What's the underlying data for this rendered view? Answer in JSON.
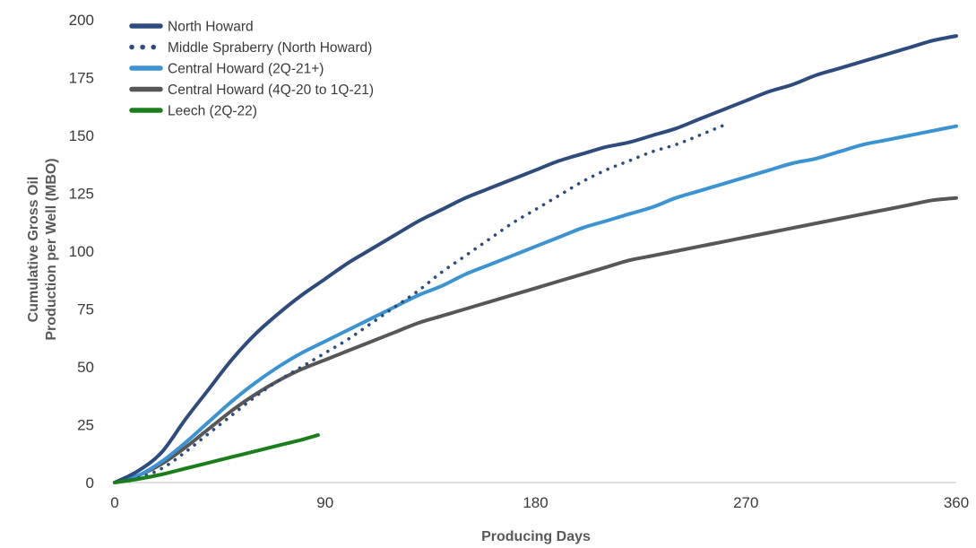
{
  "chart_data": {
    "type": "line",
    "title": "",
    "xlabel": "Producing Days",
    "ylabel_lines": [
      "Cumulative Gross Oil",
      "Production per Well (MBO)"
    ],
    "xlim": [
      0,
      360
    ],
    "ylim": [
      0,
      200
    ],
    "xticks": [
      0,
      90,
      180,
      270,
      360
    ],
    "yticks": [
      0,
      25,
      50,
      75,
      100,
      125,
      150,
      175,
      200
    ],
    "grid": false,
    "legend_position": "top-left",
    "series": [
      {
        "name": "North Howard",
        "color": "#2e4b7d",
        "style": "solid",
        "points": [
          [
            0,
            0
          ],
          [
            10,
            5
          ],
          [
            20,
            13
          ],
          [
            30,
            27
          ],
          [
            40,
            40
          ],
          [
            50,
            53
          ],
          [
            60,
            64
          ],
          [
            70,
            73
          ],
          [
            80,
            81
          ],
          [
            90,
            88
          ],
          [
            100,
            95
          ],
          [
            110,
            101
          ],
          [
            120,
            107
          ],
          [
            130,
            113
          ],
          [
            140,
            118
          ],
          [
            150,
            123
          ],
          [
            160,
            127
          ],
          [
            170,
            131
          ],
          [
            180,
            135
          ],
          [
            190,
            139
          ],
          [
            200,
            142
          ],
          [
            210,
            145
          ],
          [
            220,
            147
          ],
          [
            230,
            150
          ],
          [
            240,
            153
          ],
          [
            250,
            157
          ],
          [
            260,
            161
          ],
          [
            270,
            165
          ],
          [
            280,
            169
          ],
          [
            290,
            172
          ],
          [
            300,
            176
          ],
          [
            310,
            179
          ],
          [
            320,
            182
          ],
          [
            330,
            185
          ],
          [
            340,
            188
          ],
          [
            350,
            191
          ],
          [
            360,
            193
          ]
        ]
      },
      {
        "name": "Middle Spraberry (North Howard)",
        "color": "#2e4b7d",
        "style": "dotted",
        "points": [
          [
            0,
            0
          ],
          [
            10,
            2
          ],
          [
            20,
            6
          ],
          [
            30,
            13
          ],
          [
            40,
            21
          ],
          [
            50,
            29
          ],
          [
            60,
            37
          ],
          [
            70,
            44
          ],
          [
            80,
            50
          ],
          [
            90,
            56
          ],
          [
            100,
            62
          ],
          [
            110,
            69
          ],
          [
            120,
            76
          ],
          [
            130,
            83
          ],
          [
            140,
            91
          ],
          [
            150,
            98
          ],
          [
            160,
            105
          ],
          [
            170,
            112
          ],
          [
            180,
            118
          ],
          [
            190,
            124
          ],
          [
            200,
            130
          ],
          [
            210,
            135
          ],
          [
            220,
            139
          ],
          [
            230,
            143
          ],
          [
            240,
            146
          ],
          [
            250,
            150
          ],
          [
            262,
            155
          ]
        ]
      },
      {
        "name": "Central Howard (2Q-21+)",
        "color": "#3b93d1",
        "style": "solid",
        "points": [
          [
            0,
            0
          ],
          [
            10,
            3
          ],
          [
            20,
            9
          ],
          [
            30,
            17
          ],
          [
            40,
            26
          ],
          [
            50,
            35
          ],
          [
            60,
            43
          ],
          [
            70,
            50
          ],
          [
            80,
            56
          ],
          [
            90,
            61
          ],
          [
            100,
            66
          ],
          [
            110,
            71
          ],
          [
            120,
            76
          ],
          [
            130,
            81
          ],
          [
            140,
            85
          ],
          [
            150,
            90
          ],
          [
            160,
            94
          ],
          [
            170,
            98
          ],
          [
            180,
            102
          ],
          [
            190,
            106
          ],
          [
            200,
            110
          ],
          [
            210,
            113
          ],
          [
            220,
            116
          ],
          [
            230,
            119
          ],
          [
            240,
            123
          ],
          [
            250,
            126
          ],
          [
            260,
            129
          ],
          [
            270,
            132
          ],
          [
            280,
            135
          ],
          [
            290,
            138
          ],
          [
            300,
            140
          ],
          [
            310,
            143
          ],
          [
            320,
            146
          ],
          [
            330,
            148
          ],
          [
            340,
            150
          ],
          [
            350,
            152
          ],
          [
            360,
            154
          ]
        ]
      },
      {
        "name": "Central Howard (4Q-20 to 1Q-21)",
        "color": "#575757",
        "style": "solid",
        "points": [
          [
            0,
            0
          ],
          [
            10,
            3
          ],
          [
            20,
            8
          ],
          [
            30,
            15
          ],
          [
            40,
            23
          ],
          [
            50,
            31
          ],
          [
            60,
            38
          ],
          [
            70,
            44
          ],
          [
            80,
            49
          ],
          [
            90,
            53
          ],
          [
            100,
            57
          ],
          [
            110,
            61
          ],
          [
            120,
            65
          ],
          [
            130,
            69
          ],
          [
            140,
            72
          ],
          [
            150,
            75
          ],
          [
            160,
            78
          ],
          [
            170,
            81
          ],
          [
            180,
            84
          ],
          [
            190,
            87
          ],
          [
            200,
            90
          ],
          [
            210,
            93
          ],
          [
            220,
            96
          ],
          [
            230,
            98
          ],
          [
            240,
            100
          ],
          [
            250,
            102
          ],
          [
            260,
            104
          ],
          [
            270,
            106
          ],
          [
            280,
            108
          ],
          [
            290,
            110
          ],
          [
            300,
            112
          ],
          [
            310,
            114
          ],
          [
            320,
            116
          ],
          [
            330,
            118
          ],
          [
            340,
            120
          ],
          [
            350,
            122
          ],
          [
            360,
            123
          ]
        ]
      },
      {
        "name": "Leech (2Q-22)",
        "color": "#1a7f1a",
        "style": "solid",
        "points": [
          [
            0,
            0
          ],
          [
            10,
            1.5
          ],
          [
            20,
            3.5
          ],
          [
            30,
            6
          ],
          [
            40,
            8.5
          ],
          [
            50,
            11
          ],
          [
            60,
            13.5
          ],
          [
            70,
            16
          ],
          [
            80,
            18.5
          ],
          [
            87,
            20.5
          ]
        ]
      }
    ]
  }
}
